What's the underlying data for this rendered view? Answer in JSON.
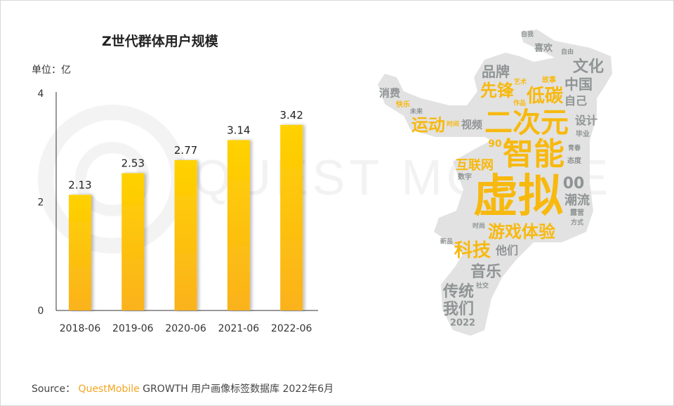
{
  "watermark": "QUEST MOBILE",
  "colors": {
    "bar_top": "#ffd200",
    "bar_bottom": "#fbb21c",
    "word_yellow": "#f7b90f",
    "word_gray": "#8f9494",
    "silhouette": "#e2e2e2"
  },
  "chart_data": {
    "type": "bar",
    "title": "Z世代群体用户规模",
    "unit_label": "单位：亿",
    "categories": [
      "2018-06",
      "2019-06",
      "2020-06",
      "2021-06",
      "2022-06"
    ],
    "values": [
      2.13,
      2.53,
      2.77,
      3.14,
      3.42
    ],
    "data_labels": [
      "2.13",
      "2.53",
      "2.77",
      "3.14",
      "3.42"
    ],
    "yticks": [
      "0",
      "2",
      "4"
    ],
    "ylim": [
      0,
      4
    ],
    "grid": false
  },
  "wordcloud": {
    "words": [
      {
        "text": "自我",
        "color": "gray"
      },
      {
        "text": "喜欢",
        "color": "gray"
      },
      {
        "text": "自由",
        "color": "gray"
      },
      {
        "text": "品牌",
        "color": "gray"
      },
      {
        "text": "文化",
        "color": "gray"
      },
      {
        "text": "中国",
        "color": "gray"
      },
      {
        "text": "故事",
        "color": "yellow"
      },
      {
        "text": "先锋",
        "color": "yellow"
      },
      {
        "text": "艺术",
        "color": "yellow"
      },
      {
        "text": "低碳",
        "color": "yellow"
      },
      {
        "text": "作品",
        "color": "yellow"
      },
      {
        "text": "自己",
        "color": "gray"
      },
      {
        "text": "消费",
        "color": "gray"
      },
      {
        "text": "快乐",
        "color": "yellow"
      },
      {
        "text": "未来",
        "color": "gray"
      },
      {
        "text": "设计",
        "color": "gray"
      },
      {
        "text": "运动",
        "color": "yellow"
      },
      {
        "text": "时间",
        "color": "yellow"
      },
      {
        "text": "视频",
        "color": "gray"
      },
      {
        "text": "二次元",
        "color": "yellow"
      },
      {
        "text": "毕业",
        "color": "gray"
      },
      {
        "text": "90",
        "color": "yellow"
      },
      {
        "text": "智能",
        "color": "yellow"
      },
      {
        "text": "青春",
        "color": "gray"
      },
      {
        "text": "互联网",
        "color": "yellow"
      },
      {
        "text": "态度",
        "color": "gray"
      },
      {
        "text": "数字",
        "color": "gray"
      },
      {
        "text": "00",
        "color": "gray"
      },
      {
        "text": "虚拟",
        "color": "yellow"
      },
      {
        "text": "潮流",
        "color": "gray"
      },
      {
        "text": "露营",
        "color": "gray"
      },
      {
        "text": "方式",
        "color": "gray"
      },
      {
        "text": "时尚",
        "color": "gray"
      },
      {
        "text": "游戏体验",
        "color": "yellow"
      },
      {
        "text": "新品",
        "color": "gray"
      },
      {
        "text": "科技",
        "color": "yellow"
      },
      {
        "text": "他们",
        "color": "gray"
      },
      {
        "text": "音乐",
        "color": "gray"
      },
      {
        "text": "社交",
        "color": "gray"
      },
      {
        "text": "传统",
        "color": "gray"
      },
      {
        "text": "我们",
        "color": "gray"
      },
      {
        "text": "2022",
        "color": "gray"
      }
    ]
  },
  "source": {
    "label": "Source：",
    "brand": "QuestMobile",
    "text": "GROWTH 用户画像标签数据库 2022年6月"
  }
}
